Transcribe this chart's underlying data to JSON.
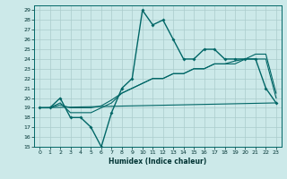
{
  "title": "",
  "xlabel": "Humidex (Indice chaleur)",
  "xlim": [
    -0.5,
    23.5
  ],
  "ylim": [
    15,
    29.5
  ],
  "yticks": [
    15,
    16,
    17,
    18,
    19,
    20,
    21,
    22,
    23,
    24,
    25,
    26,
    27,
    28,
    29
  ],
  "xticks": [
    0,
    1,
    2,
    3,
    4,
    5,
    6,
    7,
    8,
    9,
    10,
    11,
    12,
    13,
    14,
    15,
    16,
    17,
    18,
    19,
    20,
    21,
    22,
    23
  ],
  "background_color": "#cce9e9",
  "grid_color": "#aacccc",
  "line_color": "#006666",
  "line1_x": [
    0,
    1,
    2,
    3,
    4,
    5,
    6,
    7,
    8,
    9,
    10,
    11,
    12,
    13,
    14,
    15,
    16,
    17,
    18,
    19,
    20,
    21,
    22,
    23
  ],
  "line1_y": [
    19,
    19,
    20,
    18,
    18,
    17,
    15,
    18.5,
    21,
    22,
    29,
    27.5,
    28,
    26,
    24,
    24,
    25,
    25,
    24,
    24,
    24,
    24,
    21,
    19.5
  ],
  "line2_x": [
    0,
    1,
    2,
    3,
    4,
    5,
    6,
    7,
    8,
    9,
    10,
    11,
    12,
    13,
    14,
    15,
    16,
    17,
    18,
    19,
    20,
    21,
    22,
    23
  ],
  "line2_y": [
    19,
    19,
    19.5,
    18.5,
    18.5,
    18.5,
    19,
    19.5,
    20.5,
    21,
    21.5,
    22,
    22,
    22.5,
    22.5,
    23,
    23,
    23.5,
    23.5,
    23.8,
    24,
    24,
    24,
    20
  ],
  "line3_x": [
    0,
    1,
    2,
    3,
    4,
    5,
    6,
    7,
    8,
    9,
    10,
    11,
    12,
    13,
    14,
    15,
    16,
    17,
    18,
    19,
    20,
    21,
    22,
    23
  ],
  "line3_y": [
    19,
    19,
    19.3,
    19,
    19,
    19,
    19.2,
    19.8,
    20.5,
    21,
    21.5,
    22,
    22,
    22.5,
    22.5,
    23,
    23,
    23.5,
    23.5,
    23.5,
    24,
    24.5,
    24.5,
    20.5
  ],
  "line4_x": [
    0,
    23
  ],
  "line4_y": [
    19,
    19.5
  ]
}
